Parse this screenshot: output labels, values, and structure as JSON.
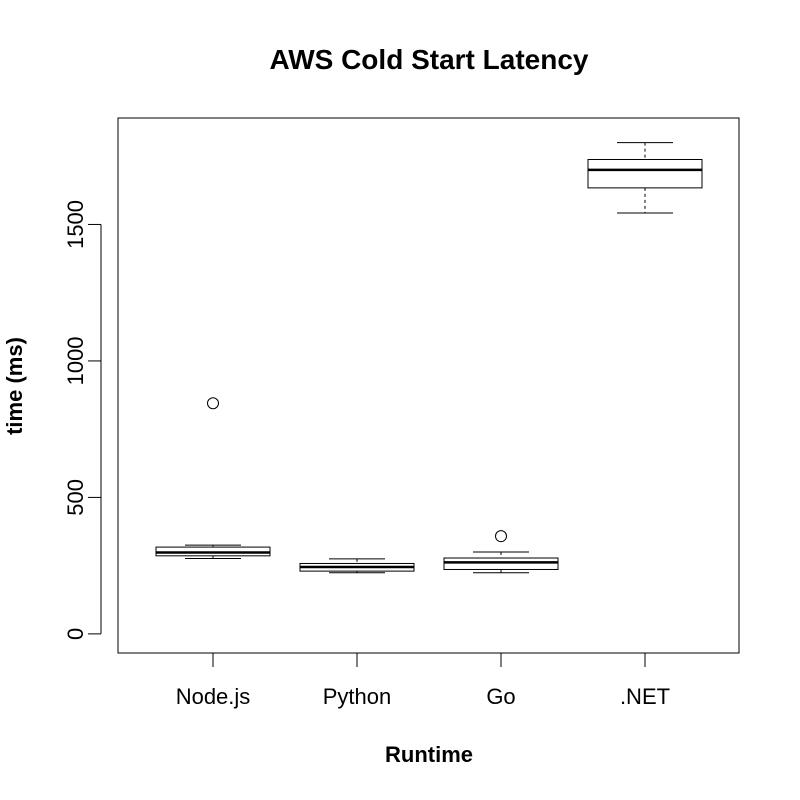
{
  "chart_data": {
    "type": "box",
    "title": "AWS Cold Start Latency",
    "xlabel": "Runtime",
    "ylabel": "time (ms)",
    "ylim": [
      -70,
      1890
    ],
    "yticks": [
      0,
      500,
      1000,
      1500
    ],
    "categories": [
      "Node.js",
      "Python",
      "Go",
      ".NET"
    ],
    "boxes": [
      {
        "category": "Node.js",
        "min": 276,
        "q1": 286,
        "median": 298,
        "q3": 318,
        "max": 325,
        "outliers": [
          845
        ]
      },
      {
        "category": "Python",
        "min": 224,
        "q1": 230,
        "median": 245,
        "q3": 258,
        "max": 275,
        "outliers": []
      },
      {
        "category": "Go",
        "min": 224,
        "q1": 236,
        "median": 262,
        "q3": 278,
        "max": 300,
        "outliers": [
          358
        ]
      },
      {
        "category": ".NET",
        "min": 1542,
        "q1": 1634,
        "median": 1700,
        "q3": 1738,
        "max": 1800,
        "outliers": []
      }
    ],
    "grid": false,
    "legend": "none"
  }
}
